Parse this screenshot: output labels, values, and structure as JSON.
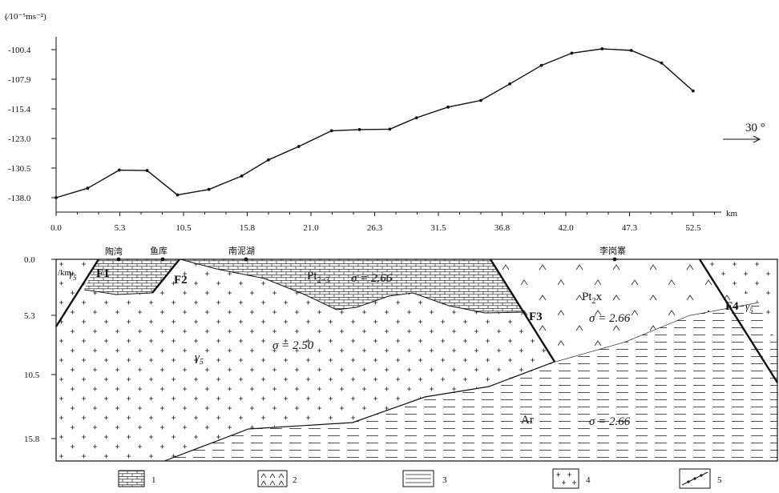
{
  "profile": {
    "y_unit_label": "(⁄10⁻⁵ms⁻²)",
    "x_unit_label": "km",
    "y_ticks": [
      "-100.4",
      "-107.9",
      "-115.4",
      "-123.0",
      "-130.5",
      "-138.0"
    ],
    "x_ticks": [
      "0.0",
      "5.3",
      "10.5",
      "15.8",
      "21.0",
      "26.3",
      "31.5",
      "36.8",
      "42.0",
      "47.3",
      "52.5"
    ],
    "direction_label": "30 °",
    "points_x_km": [
      0.0,
      2.6,
      5.2,
      7.5,
      10.0,
      12.6,
      15.3,
      17.5,
      20.0,
      22.7,
      25.0,
      27.5,
      29.7,
      32.3,
      35.0,
      37.4,
      40.0,
      42.5,
      45.0,
      47.4,
      49.9,
      52.5
    ],
    "points_y": [
      -138.0,
      -135.6,
      -131.0,
      -131.1,
      -137.3,
      -135.9,
      -132.5,
      -128.4,
      -125.0,
      -121.0,
      -120.7,
      -120.6,
      -117.7,
      -115.0,
      -113.3,
      -109.1,
      -104.4,
      -101.3,
      -100.2,
      -100.6,
      -103.8,
      -110.9
    ]
  },
  "section": {
    "depth_ticks": [
      "0.0",
      "5.3",
      "10.5",
      "15.8"
    ],
    "depth_unit": "/km",
    "places": [
      "陶湾",
      "鱼库",
      "南泥湖",
      "李岗寨"
    ],
    "faults": [
      "F1",
      "F2",
      "F3",
      "F4"
    ],
    "units": [
      {
        "main": "Pt",
        "sub": "2−3"
      },
      {
        "main": "Pt",
        "sub": "2",
        "after": "x"
      },
      {
        "main": "γ",
        "sub": "5"
      },
      {
        "main": "Ar"
      }
    ],
    "densities": [
      "σ = 2.66",
      "σ = 2.66",
      "σ = 2.50",
      "σ = 2.66"
    ]
  },
  "legend": {
    "items": [
      {
        "number": "1",
        "pattern": "limestone-brick"
      },
      {
        "number": "2",
        "pattern": "chevron-volcanic"
      },
      {
        "number": "3",
        "pattern": "dashed-lines"
      },
      {
        "number": "4",
        "pattern": "plus-granite"
      },
      {
        "number": "5",
        "pattern": "line-with-points"
      }
    ]
  },
  "colors": {
    "ink": "#111111",
    "background": "#ffffff"
  }
}
